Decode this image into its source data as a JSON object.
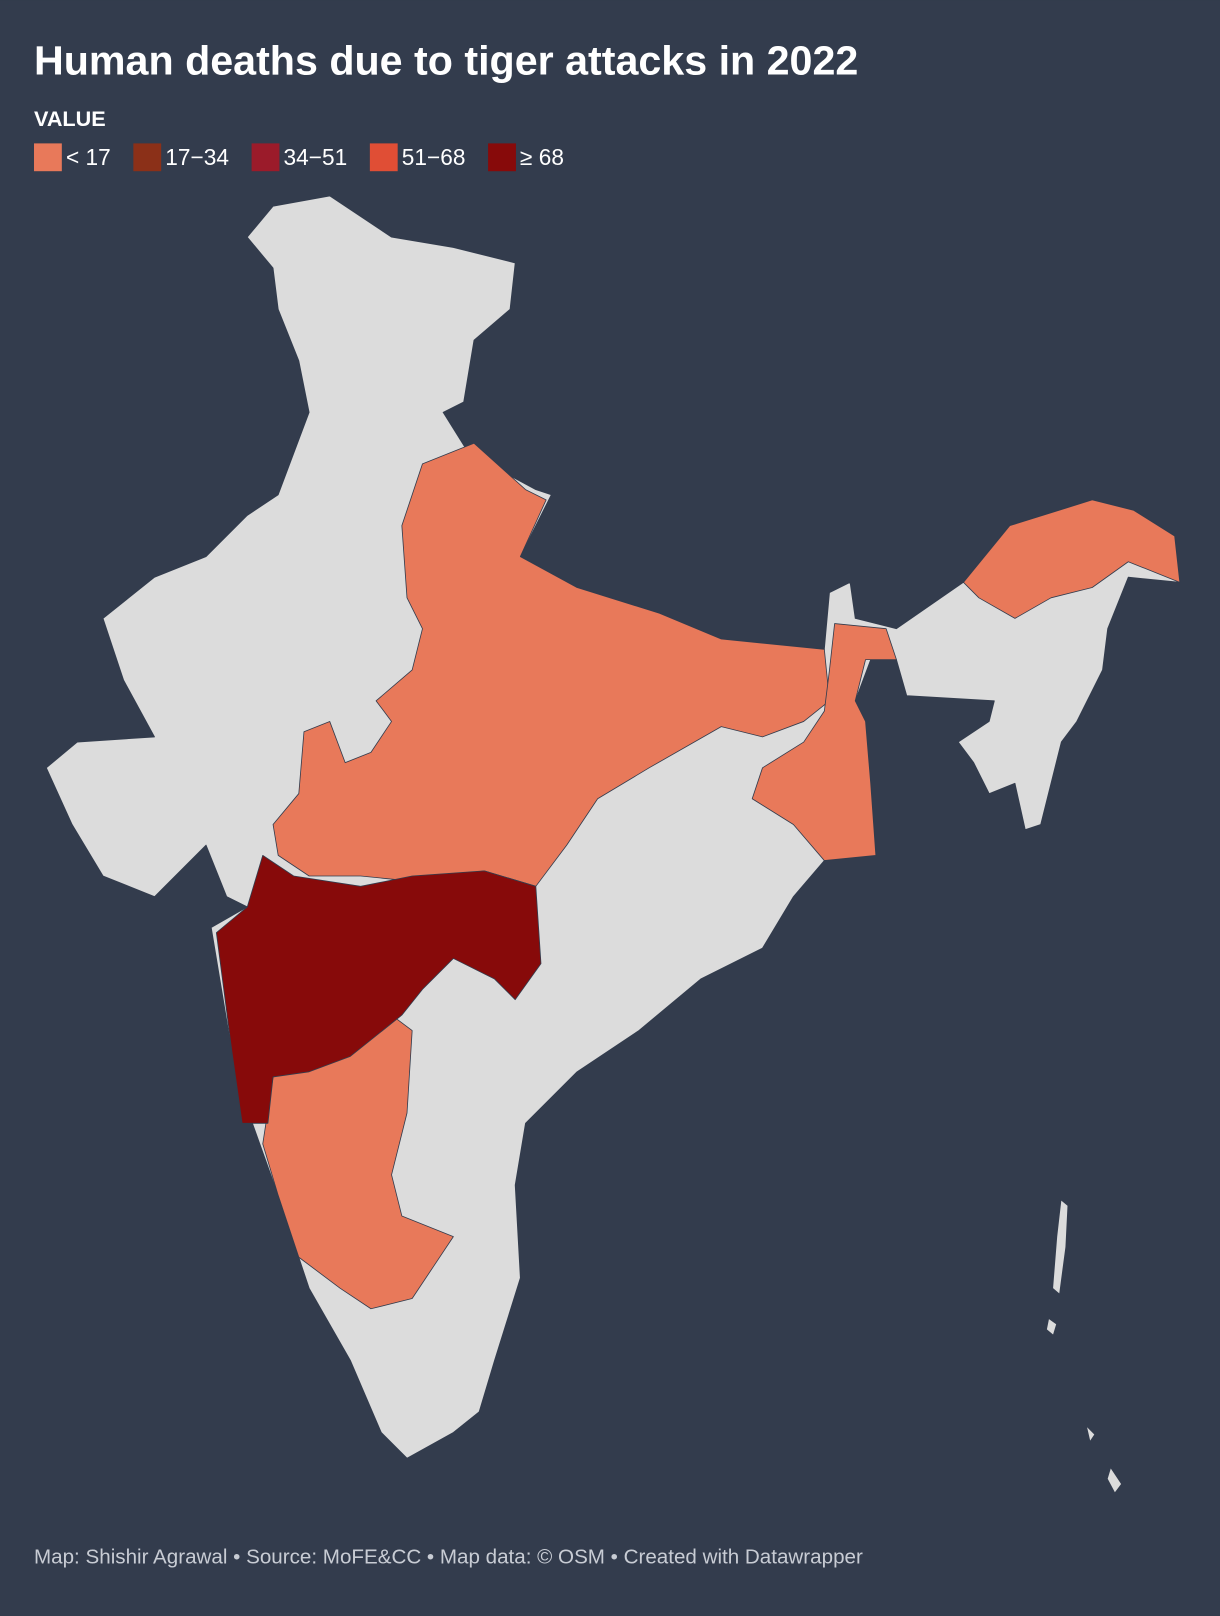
{
  "title": "Human deaths due to tiger attacks in 2022",
  "legend": {
    "title": "VALUE",
    "items": [
      {
        "label": "< 17",
        "color": "#e8795a"
      },
      {
        "label": "17−34",
        "color": "#8b3018"
      },
      {
        "label": "34−51",
        "color": "#9b1b2a"
      },
      {
        "label": "51−68",
        "color": "#e04e35"
      },
      {
        "label": "≥ 68",
        "color": "#870a0a"
      }
    ]
  },
  "footer": "Map: Shishir Agrawal • Source: MoFE&CC • Map data: © OSM • Created with Datawrapper"
}
